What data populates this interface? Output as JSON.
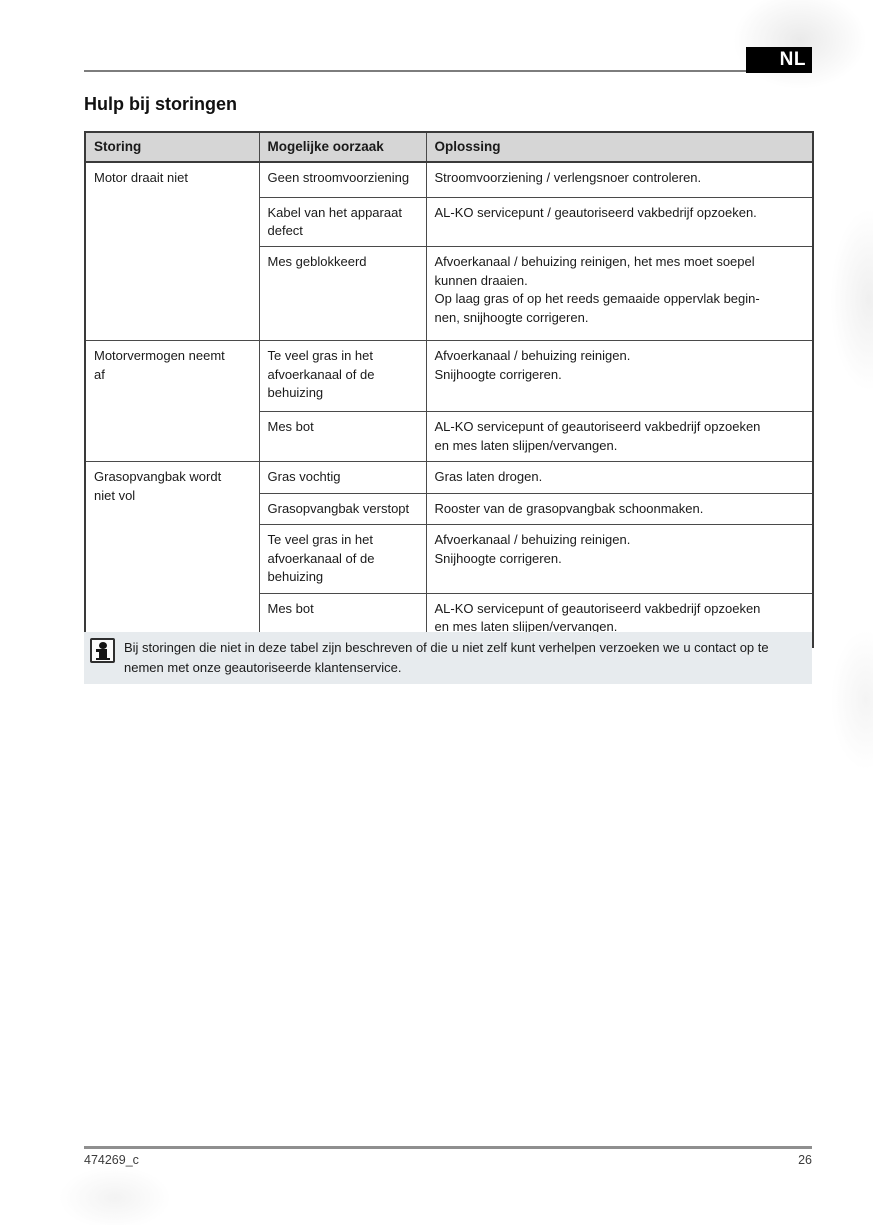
{
  "header": {
    "language_badge": "NL",
    "title": "Hulp bij storingen"
  },
  "table": {
    "columns": [
      "Storing",
      "Mogelijke oorzaak",
      "Oplossing"
    ],
    "groups": [
      {
        "problem": "Motor draait niet",
        "rows": [
          {
            "cause": "Geen stroomvoorziening",
            "solution": "Stroomvoorziening / verlengsnoer controleren."
          },
          {
            "cause": "Kabel van het apparaat\ndefect",
            "solution": "AL-KO servicepunt / geautoriseerd vakbedrijf opzoeken."
          },
          {
            "cause": "Mes geblokkeerd",
            "solution": "Afvoerkanaal / behuizing reinigen, het mes moet soepel\nkunnen draaien.\nOp laag gras of op het reeds gemaaide oppervlak begin-\nnen, snijhoogte corrigeren."
          }
        ]
      },
      {
        "problem": "Motorvermogen neemt\naf",
        "rows": [
          {
            "cause": "Te veel gras in het\nafvoerkanaal of de\nbehuizing",
            "solution": "Afvoerkanaal / behuizing reinigen.\nSnijhoogte corrigeren."
          },
          {
            "cause": "Mes bot",
            "solution": "AL-KO servicepunt of geautoriseerd vakbedrijf opzoeken\nen mes laten slijpen/vervangen."
          }
        ]
      },
      {
        "problem": "Grasopvangbak wordt\nniet vol",
        "rows": [
          {
            "cause": "Gras vochtig",
            "solution": "Gras laten drogen."
          },
          {
            "cause": "Grasopvangbak verstopt",
            "solution": "Rooster van de grasopvangbak schoonmaken."
          },
          {
            "cause": "Te veel gras in het\nafvoerkanaal of de\nbehuizing",
            "solution": "Afvoerkanaal / behuizing reinigen.\nSnijhoogte corrigeren."
          },
          {
            "cause": "Mes bot",
            "solution": "AL-KO servicepunt of geautoriseerd vakbedrijf opzoeken\nen mes laten slijpen/vervangen."
          }
        ]
      }
    ]
  },
  "note": {
    "icon": "info-icon",
    "text": "Bij storingen die niet in deze tabel zijn beschreven of die u niet zelf kunt verhelpen verzoeken we u contact op te nemen met onze geautoriseerde klantenservice."
  },
  "footer": {
    "document_code": "474269_c",
    "page_number": "26"
  },
  "colors": {
    "table_header_bg": "#d6d6d6",
    "note_bg": "#e7ebee",
    "badge_bg": "#000000",
    "badge_text": "#ffffff",
    "border": "#4a4a4a"
  }
}
